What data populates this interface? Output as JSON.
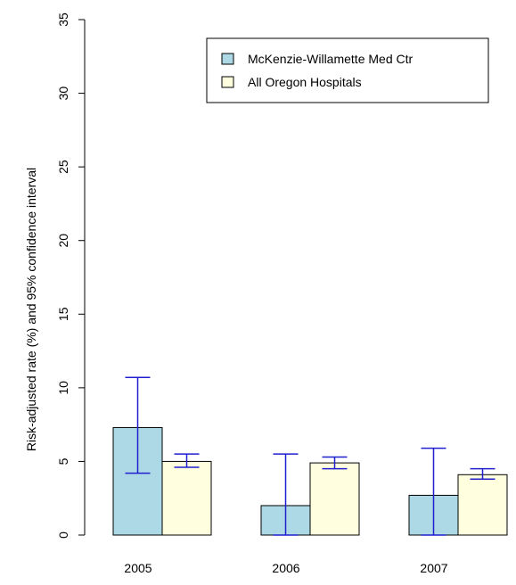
{
  "chart_data": {
    "type": "bar",
    "categories": [
      "2005",
      "2006",
      "2007"
    ],
    "series": [
      {
        "name": "McKenzie-Willamette Med Ctr",
        "color": "#add8e6",
        "values": [
          7.3,
          2.0,
          2.7
        ],
        "ci_lower": [
          4.2,
          0.0,
          0.0
        ],
        "ci_upper": [
          10.7,
          5.5,
          5.9
        ]
      },
      {
        "name": "All Oregon Hospitals",
        "color": "#ffffe0",
        "values": [
          5.0,
          4.9,
          4.1
        ],
        "ci_lower": [
          4.6,
          4.5,
          3.8
        ],
        "ci_upper": [
          5.5,
          5.3,
          4.5
        ]
      }
    ],
    "errorbar_color": "#1f1fcf",
    "ylabel": "Risk-adjusted rate (%) and 95% confidence interval",
    "ylim": [
      0,
      35
    ],
    "yticks": [
      0,
      5,
      10,
      15,
      20,
      25,
      30,
      35
    ],
    "legend_position": "top-right"
  }
}
